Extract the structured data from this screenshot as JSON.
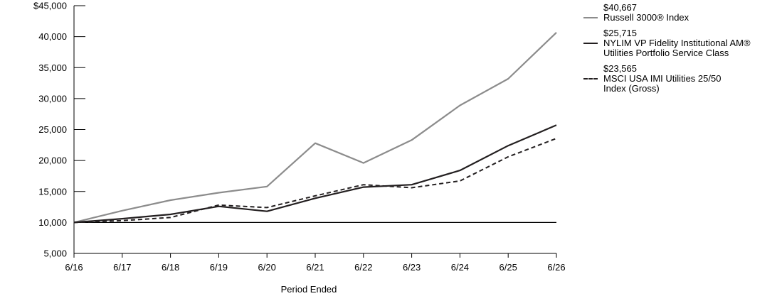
{
  "chart_data": {
    "type": "line",
    "categories": [
      "6/16",
      "6/17",
      "6/18",
      "6/19",
      "6/20",
      "6/21",
      "6/22",
      "6/23",
      "6/24",
      "6/25",
      "6/26"
    ],
    "xlabel": "Period Ended",
    "ylabel": "",
    "ylim": [
      5000,
      45000
    ],
    "yticks": [
      5000,
      10000,
      15000,
      20000,
      25000,
      30000,
      35000,
      40000,
      45000
    ],
    "ytick_labels": [
      "5,000",
      "10,000",
      "15,000",
      "20,000",
      "25,000",
      "30,000",
      "35,000",
      "40,000",
      "$45,000"
    ],
    "legend_position": "right",
    "series": [
      {
        "name": "Russell 3000® Index",
        "end_value_label": "$40,667",
        "color": "#8c8c8c",
        "dash": "solid",
        "values": [
          10000,
          11900,
          13600,
          14800,
          15800,
          22800,
          19600,
          23300,
          28900,
          33200,
          40667
        ]
      },
      {
        "name": "NYLIM VP Fidelity Institutional AM® Utilities Portfolio Service Class",
        "end_value_label": "$25,715",
        "color": "#231f20",
        "dash": "solid",
        "values": [
          10000,
          10600,
          11300,
          12600,
          11800,
          13900,
          15700,
          16100,
          18400,
          22400,
          25715
        ]
      },
      {
        "name": "MSCI USA IMI Utilities 25/50 Index (Gross)",
        "end_value_label": "$23,565",
        "color": "#231f20",
        "dash": "dashed",
        "values": [
          10000,
          10300,
          10800,
          12800,
          12400,
          14300,
          16100,
          15600,
          16700,
          20600,
          23565
        ]
      }
    ]
  }
}
